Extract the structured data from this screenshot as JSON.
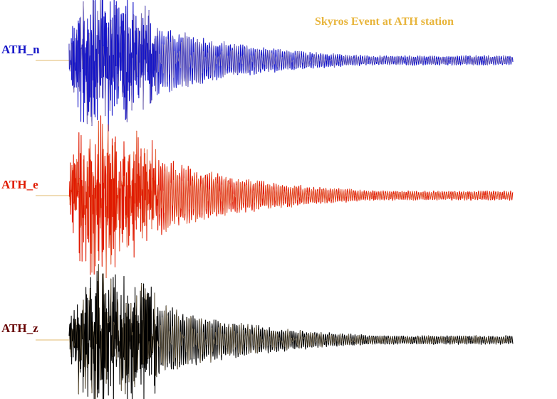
{
  "chart_data": {
    "type": "line",
    "title": "Skyros Event at ATH station",
    "title_color": "#e8b53c",
    "grid": false,
    "legend": "none",
    "series": [
      {
        "name": "ATH_n",
        "color": "#1515c8",
        "label_color": "#1515c8",
        "peak_amplitude": 1.0,
        "relative_decay": 0.25,
        "onset_fraction": 0.0
      },
      {
        "name": "ATH_e",
        "color": "#e01a00",
        "label_color": "#e01a00",
        "peak_amplitude": 1.0,
        "relative_decay": 0.22,
        "onset_fraction": 0.0
      },
      {
        "name": "ATH_z",
        "color": "#000000",
        "label_color": "#660000",
        "peak_amplitude": 1.0,
        "relative_decay": 0.22,
        "onset_fraction": 0.0
      }
    ],
    "baseline_color": "#e8c88a"
  }
}
